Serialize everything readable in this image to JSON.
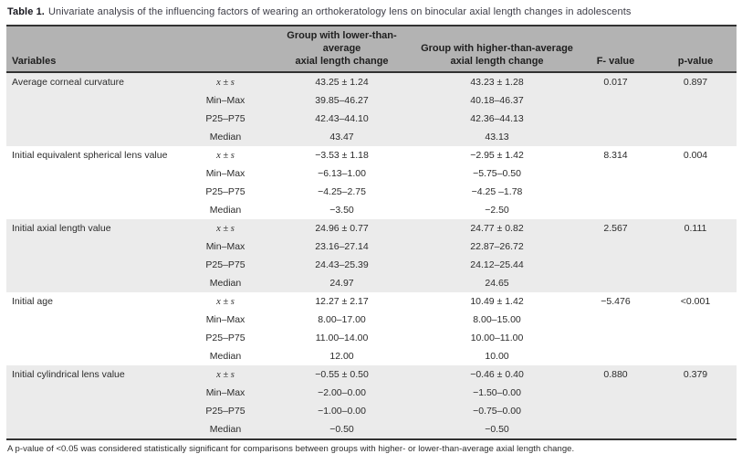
{
  "table": {
    "title_label": "Table 1.",
    "title_text": "Univariate analysis of the influencing factors of wearing an orthokeratology lens on binocular axial length changes in adolescents",
    "footnote": "A p-value of <0.05 was considered statistically significant for comparisons between groups with higher- or lower-than-average axial length change.",
    "colors": {
      "header_bg": "#b3b3b3",
      "shaded_row_bg": "#ebebeb",
      "border": "#323232",
      "text": "#2b2b2b"
    },
    "header": {
      "variables": "Variables",
      "group_lower_line1": "Group with lower-than-average",
      "group_lower_line2": "axial length change",
      "group_higher_line1": "Group with higher-than-average",
      "group_higher_line2": "axial length change",
      "f": "F- value",
      "p": "p-value"
    },
    "groups": [
      {
        "variable": "Average corneal curvature",
        "rows": [
          {
            "stat": "x ± s",
            "lower": "43.25 ± 1.24",
            "higher": "43.23 ± 1.28",
            "f": "0.017",
            "p": "0.897"
          },
          {
            "stat": "Min–Max",
            "lower": "39.85–46.27",
            "higher": "40.18–46.37"
          },
          {
            "stat": "P25–P75",
            "lower": "42.43–44.10",
            "higher": "42.36–44.13"
          },
          {
            "stat": "Median",
            "lower": "43.47",
            "higher": "43.13"
          }
        ]
      },
      {
        "variable": "Initial equivalent spherical lens value",
        "rows": [
          {
            "stat": "x ± s",
            "lower": "−3.53 ± 1.18",
            "higher": "−2.95 ± 1.42",
            "f": "8.314",
            "p": "0.004"
          },
          {
            "stat": "Min–Max",
            "lower": "−6.13–1.00",
            "higher": "−5.75–0.50"
          },
          {
            "stat": "P25–P75",
            "lower": "−4.25–2.75",
            "higher": "−4.25 –1.78"
          },
          {
            "stat": "Median",
            "lower": "−3.50",
            "higher": "−2.50"
          }
        ]
      },
      {
        "variable": "Initial axial length value",
        "rows": [
          {
            "stat": "x ± s",
            "lower": "24.96 ± 0.77",
            "higher": "24.77 ± 0.82",
            "f": "2.567",
            "p": "0.111"
          },
          {
            "stat": "Min–Max",
            "lower": "23.16–27.14",
            "higher": "22.87–26.72"
          },
          {
            "stat": "P25–P75",
            "lower": "24.43–25.39",
            "higher": "24.12–25.44"
          },
          {
            "stat": "Median",
            "lower": "24.97",
            "higher": "24.65"
          }
        ]
      },
      {
        "variable": "Initial age",
        "rows": [
          {
            "stat": "x ± s",
            "lower": "12.27 ± 2.17",
            "higher": "10.49 ± 1.42",
            "f": "−5.476",
            "p": "<0.001"
          },
          {
            "stat": "Min–Max",
            "lower": "8.00–17.00",
            "higher": "8.00–15.00"
          },
          {
            "stat": "P25–P75",
            "lower": "11.00–14.00",
            "higher": "10.00–11.00"
          },
          {
            "stat": "Median",
            "lower": "12.00",
            "higher": "10.00"
          }
        ]
      },
      {
        "variable": "Initial cylindrical lens value",
        "rows": [
          {
            "stat": "x ± s",
            "lower": "−0.55 ± 0.50",
            "higher": "−0.46 ± 0.40",
            "f": "0.880",
            "p": "0.379"
          },
          {
            "stat": "Min–Max",
            "lower": "−2.00–0.00",
            "higher": "−1.50–0.00"
          },
          {
            "stat": "P25–P75",
            "lower": "−1.00–0.00",
            "higher": "−0.75–0.00"
          },
          {
            "stat": "Median",
            "lower": "−0.50",
            "higher": "−0.50"
          }
        ]
      }
    ]
  }
}
